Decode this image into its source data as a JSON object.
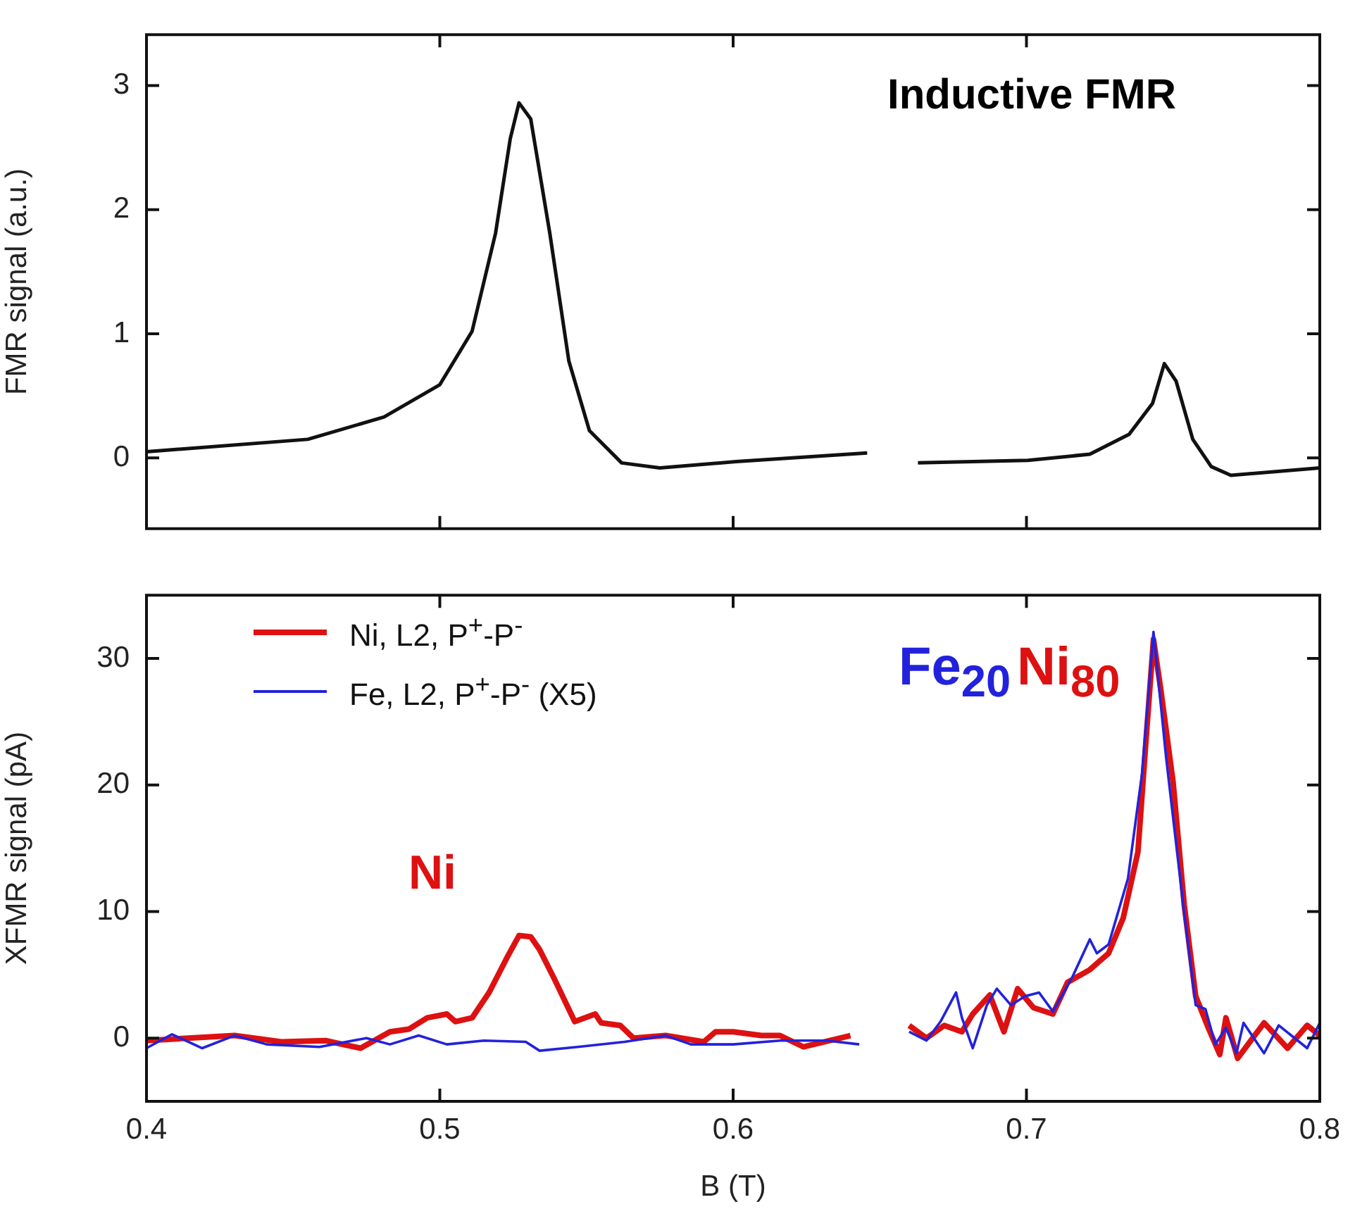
{
  "chart_data": [
    {
      "type": "line",
      "ylabel": "FMR signal (a.u.)",
      "annotations": [
        "Inductive FMR"
      ],
      "xlim": [
        0.4,
        0.8
      ],
      "xticks": [
        0.4,
        0.5,
        0.6,
        0.7,
        0.8
      ],
      "ylim": [
        -0.57,
        3.41
      ],
      "yticks": [
        0,
        1,
        2,
        3
      ],
      "tick_labels": "y",
      "legend": false,
      "marker": "none",
      "series": [
        {
          "color": "#111111",
          "x": [
            0.4,
            0.455,
            0.481,
            0.5,
            0.511,
            0.519,
            0.524,
            0.527,
            0.531,
            0.5375,
            0.544,
            0.551,
            0.562,
            0.575,
            0.601,
            0.6457,
            0.65,
            0.663,
            0.7005,
            0.7216,
            0.735,
            0.743,
            0.747,
            0.751,
            0.7567,
            0.763,
            0.7697,
            0.8
          ],
          "values": [
            0.05,
            0.15,
            0.33,
            0.59,
            1.02,
            1.81,
            2.57,
            2.86,
            2.73,
            1.81,
            0.78,
            0.22,
            -0.04,
            -0.08,
            -0.03,
            0.04,
            null,
            -0.04,
            -0.02,
            0.03,
            0.19,
            0.44,
            0.76,
            0.62,
            0.15,
            -0.07,
            -0.14,
            -0.08
          ]
        }
      ]
    },
    {
      "type": "line",
      "xlabel": "B (T)",
      "ylabel": "XFMR signal (pA)",
      "annotations": [
        "Ni",
        "Fe$_{20}$",
        "Ni$_{80}$"
      ],
      "xlim": [
        0.4,
        0.8
      ],
      "xticks": [
        0.4,
        0.5,
        0.6,
        0.7,
        0.8
      ],
      "ylim": [
        -5,
        35
      ],
      "yticks": [
        0,
        10,
        20,
        30
      ],
      "legend": "top left",
      "marker": "none",
      "series": [
        {
          "name": "Ni, L2, P$^{+}$-P$^{-}$",
          "color": "#dd1111",
          "x": [
            0.4,
            0.43,
            0.446,
            0.461,
            0.473,
            0.483,
            0.4894,
            0.4957,
            0.5024,
            0.5053,
            0.511,
            0.5168,
            0.523,
            0.527,
            0.531,
            0.534,
            0.539,
            0.546,
            0.553,
            0.555,
            0.5615,
            0.566,
            0.577,
            0.59,
            0.594,
            0.6,
            0.6096,
            0.616,
            0.624,
            0.64,
            0.65,
            0.66,
            0.6659,
            0.672,
            0.678,
            0.6817,
            0.6875,
            0.6923,
            0.697,
            0.7024,
            0.709,
            0.714,
            0.7216,
            0.728,
            0.733,
            0.738,
            0.741,
            0.7433,
            0.7457,
            0.75,
            0.7538,
            0.7577,
            0.762,
            0.7659,
            0.768,
            0.772,
            0.781,
            0.789,
            0.7957,
            0.8
          ],
          "values": [
            -0.2,
            0.2,
            -0.3,
            -0.2,
            -0.8,
            0.5,
            0.7,
            1.6,
            1.9,
            1.3,
            1.6,
            3.6,
            6.4,
            8.1,
            8.0,
            7.0,
            4.7,
            1.3,
            1.9,
            1.2,
            1.0,
            0,
            0.2,
            -0.3,
            0.5,
            0.5,
            0.2,
            0.2,
            -0.7,
            0.2,
            null,
            1.0,
            0,
            1.0,
            0.5,
            1.9,
            3.4,
            0.5,
            3.9,
            2.4,
            1.9,
            4.4,
            5.4,
            6.7,
            9.5,
            14.7,
            24.3,
            31.5,
            27.7,
            20.2,
            10.5,
            3.3,
            0.8,
            -1.3,
            1.6,
            -1.6,
            1.2,
            -0.8,
            1.0,
            0.2
          ]
        },
        {
          "name": "Fe, L2, P$^{+}$-P$^{-}$ (X5)",
          "color": "#2222dd",
          "x": [
            0.4,
            0.4087,
            0.419,
            0.43,
            0.441,
            0.459,
            0.475,
            0.483,
            0.4928,
            0.5024,
            0.515,
            0.5293,
            0.534,
            0.547,
            0.563,
            0.577,
            0.5856,
            0.6,
            0.616,
            0.632,
            0.643,
            0.65,
            0.66,
            0.6659,
            0.6707,
            0.676,
            0.678,
            0.6817,
            0.6865,
            0.6899,
            0.6947,
            0.6995,
            0.7043,
            0.709,
            0.7154,
            0.7216,
            0.724,
            0.728,
            0.7346,
            0.7394,
            0.7433,
            0.7476,
            0.7538,
            0.7577,
            0.761,
            0.7644,
            0.768,
            0.7716,
            0.774,
            0.781,
            0.786,
            0.7957,
            0.8
          ],
          "values": [
            -0.8,
            0.3,
            -0.8,
            0.2,
            -0.5,
            -0.7,
            0,
            -0.5,
            0.2,
            -0.5,
            -0.2,
            -0.3,
            -1.0,
            -0.7,
            -0.3,
            0.2,
            -0.5,
            -0.5,
            -0.2,
            -0.2,
            -0.5,
            null,
            0.5,
            -0.2,
            1.3,
            3.6,
            1.6,
            -0.8,
            2.6,
            3.9,
            2.6,
            3.3,
            3.6,
            2.1,
            4.7,
            7.8,
            6.7,
            7.4,
            12.6,
            20.9,
            32.1,
            22.2,
            9.8,
            2.6,
            2.3,
            -0.5,
            0.8,
            -1.2,
            1.2,
            -1.2,
            1.0,
            -0.8,
            1.2
          ]
        }
      ]
    }
  ]
}
